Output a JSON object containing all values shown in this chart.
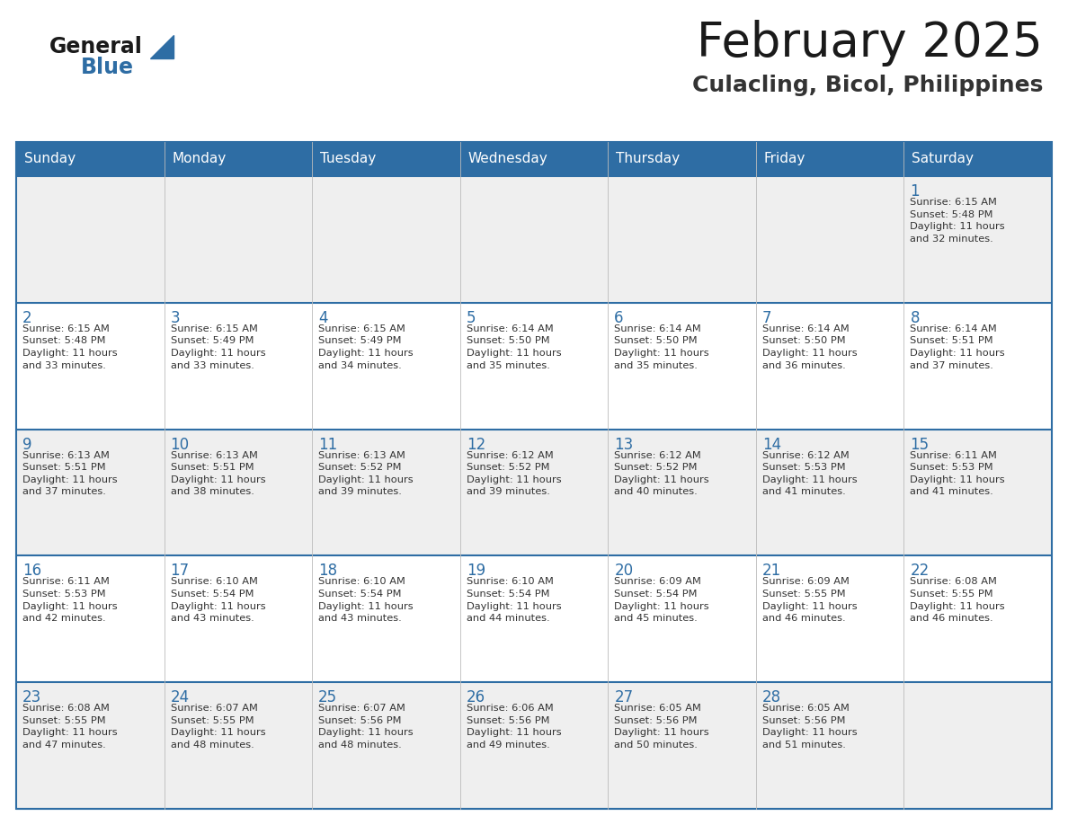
{
  "title": "February 2025",
  "subtitle": "Culacling, Bicol, Philippines",
  "header_bg": "#2E6DA4",
  "header_text_color": "#FFFFFF",
  "cell_bg_odd": "#EFEFEF",
  "cell_bg_even": "#FFFFFF",
  "day_headers": [
    "Sunday",
    "Monday",
    "Tuesday",
    "Wednesday",
    "Thursday",
    "Friday",
    "Saturday"
  ],
  "title_color": "#1a1a1a",
  "subtitle_color": "#333333",
  "day_number_color": "#2E6DA4",
  "info_color": "#333333",
  "logo_general_color": "#1a1a1a",
  "logo_blue_color": "#2E6DA4",
  "weeks": [
    [
      {
        "day": "",
        "info": ""
      },
      {
        "day": "",
        "info": ""
      },
      {
        "day": "",
        "info": ""
      },
      {
        "day": "",
        "info": ""
      },
      {
        "day": "",
        "info": ""
      },
      {
        "day": "",
        "info": ""
      },
      {
        "day": "1",
        "info": "Sunrise: 6:15 AM\nSunset: 5:48 PM\nDaylight: 11 hours\nand 32 minutes."
      }
    ],
    [
      {
        "day": "2",
        "info": "Sunrise: 6:15 AM\nSunset: 5:48 PM\nDaylight: 11 hours\nand 33 minutes."
      },
      {
        "day": "3",
        "info": "Sunrise: 6:15 AM\nSunset: 5:49 PM\nDaylight: 11 hours\nand 33 minutes."
      },
      {
        "day": "4",
        "info": "Sunrise: 6:15 AM\nSunset: 5:49 PM\nDaylight: 11 hours\nand 34 minutes."
      },
      {
        "day": "5",
        "info": "Sunrise: 6:14 AM\nSunset: 5:50 PM\nDaylight: 11 hours\nand 35 minutes."
      },
      {
        "day": "6",
        "info": "Sunrise: 6:14 AM\nSunset: 5:50 PM\nDaylight: 11 hours\nand 35 minutes."
      },
      {
        "day": "7",
        "info": "Sunrise: 6:14 AM\nSunset: 5:50 PM\nDaylight: 11 hours\nand 36 minutes."
      },
      {
        "day": "8",
        "info": "Sunrise: 6:14 AM\nSunset: 5:51 PM\nDaylight: 11 hours\nand 37 minutes."
      }
    ],
    [
      {
        "day": "9",
        "info": "Sunrise: 6:13 AM\nSunset: 5:51 PM\nDaylight: 11 hours\nand 37 minutes."
      },
      {
        "day": "10",
        "info": "Sunrise: 6:13 AM\nSunset: 5:51 PM\nDaylight: 11 hours\nand 38 minutes."
      },
      {
        "day": "11",
        "info": "Sunrise: 6:13 AM\nSunset: 5:52 PM\nDaylight: 11 hours\nand 39 minutes."
      },
      {
        "day": "12",
        "info": "Sunrise: 6:12 AM\nSunset: 5:52 PM\nDaylight: 11 hours\nand 39 minutes."
      },
      {
        "day": "13",
        "info": "Sunrise: 6:12 AM\nSunset: 5:52 PM\nDaylight: 11 hours\nand 40 minutes."
      },
      {
        "day": "14",
        "info": "Sunrise: 6:12 AM\nSunset: 5:53 PM\nDaylight: 11 hours\nand 41 minutes."
      },
      {
        "day": "15",
        "info": "Sunrise: 6:11 AM\nSunset: 5:53 PM\nDaylight: 11 hours\nand 41 minutes."
      }
    ],
    [
      {
        "day": "16",
        "info": "Sunrise: 6:11 AM\nSunset: 5:53 PM\nDaylight: 11 hours\nand 42 minutes."
      },
      {
        "day": "17",
        "info": "Sunrise: 6:10 AM\nSunset: 5:54 PM\nDaylight: 11 hours\nand 43 minutes."
      },
      {
        "day": "18",
        "info": "Sunrise: 6:10 AM\nSunset: 5:54 PM\nDaylight: 11 hours\nand 43 minutes."
      },
      {
        "day": "19",
        "info": "Sunrise: 6:10 AM\nSunset: 5:54 PM\nDaylight: 11 hours\nand 44 minutes."
      },
      {
        "day": "20",
        "info": "Sunrise: 6:09 AM\nSunset: 5:54 PM\nDaylight: 11 hours\nand 45 minutes."
      },
      {
        "day": "21",
        "info": "Sunrise: 6:09 AM\nSunset: 5:55 PM\nDaylight: 11 hours\nand 46 minutes."
      },
      {
        "day": "22",
        "info": "Sunrise: 6:08 AM\nSunset: 5:55 PM\nDaylight: 11 hours\nand 46 minutes."
      }
    ],
    [
      {
        "day": "23",
        "info": "Sunrise: 6:08 AM\nSunset: 5:55 PM\nDaylight: 11 hours\nand 47 minutes."
      },
      {
        "day": "24",
        "info": "Sunrise: 6:07 AM\nSunset: 5:55 PM\nDaylight: 11 hours\nand 48 minutes."
      },
      {
        "day": "25",
        "info": "Sunrise: 6:07 AM\nSunset: 5:56 PM\nDaylight: 11 hours\nand 48 minutes."
      },
      {
        "day": "26",
        "info": "Sunrise: 6:06 AM\nSunset: 5:56 PM\nDaylight: 11 hours\nand 49 minutes."
      },
      {
        "day": "27",
        "info": "Sunrise: 6:05 AM\nSunset: 5:56 PM\nDaylight: 11 hours\nand 50 minutes."
      },
      {
        "day": "28",
        "info": "Sunrise: 6:05 AM\nSunset: 5:56 PM\nDaylight: 11 hours\nand 51 minutes."
      },
      {
        "day": "",
        "info": ""
      }
    ]
  ],
  "fig_width": 11.88,
  "fig_height": 9.18,
  "dpi": 100
}
